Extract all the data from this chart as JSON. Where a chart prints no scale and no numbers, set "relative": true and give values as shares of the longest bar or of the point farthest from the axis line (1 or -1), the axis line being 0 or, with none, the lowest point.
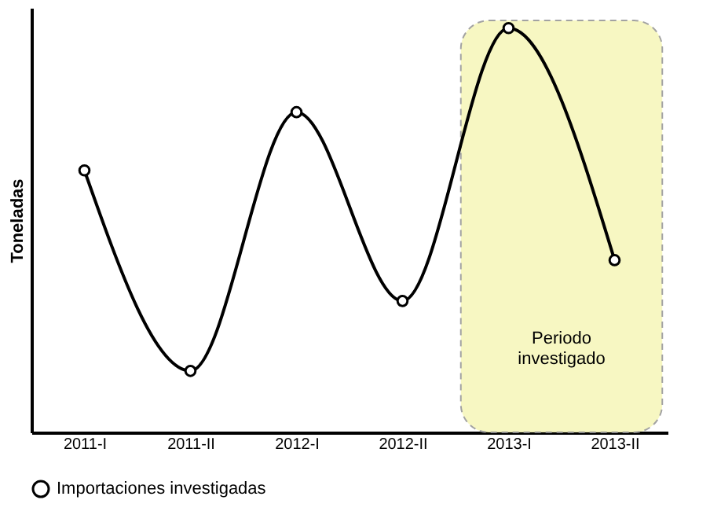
{
  "chart_data": {
    "type": "line",
    "relative": true,
    "ylabel": "Toneladas",
    "categories": [
      "2011-I",
      "2011-II",
      "2012-I",
      "2012-II",
      "2013-I",
      "2013-II"
    ],
    "series": [
      {
        "name": "Importaciones investigadas",
        "color": "#000000",
        "values": [
          0.648,
          0.152,
          0.792,
          0.325,
          1,
          0.426
        ]
      }
    ],
    "bands": [
      {
        "axis": "x",
        "from": "2013-I",
        "to": "2013-II",
        "label": "Periodo investigado",
        "color": "#f7f7bc"
      }
    ],
    "marker": "circle",
    "line_style": "solid",
    "legend": "bottom"
  }
}
